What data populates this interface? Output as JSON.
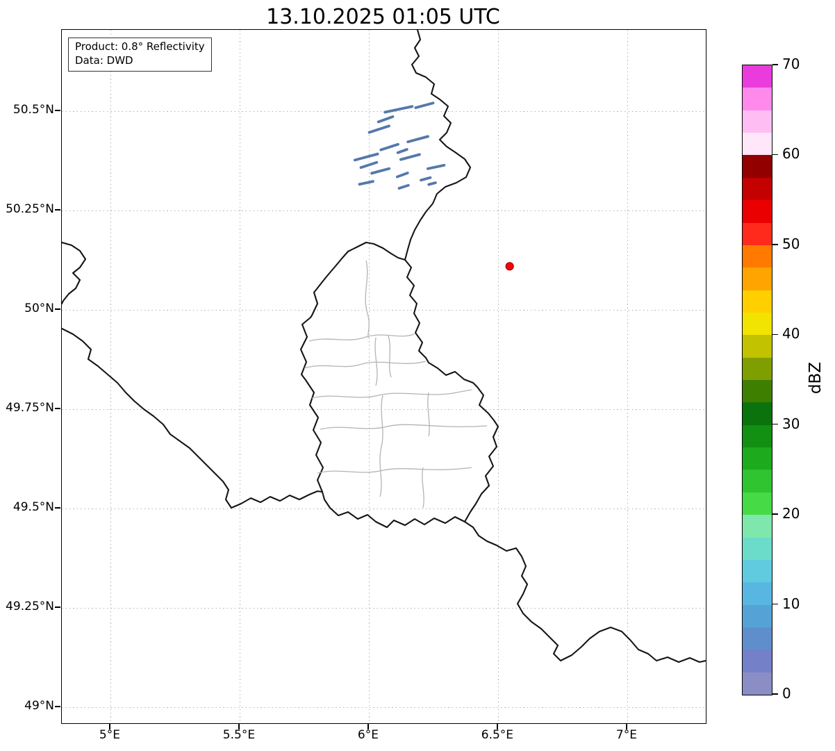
{
  "title": "13.10.2025 01:05 UTC",
  "info_box": {
    "line1": "Product: 0.8° Reflectivity",
    "line2": "Data: DWD"
  },
  "axes": {
    "x_ticks": [
      {
        "lon": 5.0,
        "label": "5°E"
      },
      {
        "lon": 5.5,
        "label": "5.5°E"
      },
      {
        "lon": 6.0,
        "label": "6°E"
      },
      {
        "lon": 6.5,
        "label": "6.5°E"
      },
      {
        "lon": 7.0,
        "label": "7°E"
      }
    ],
    "y_ticks": [
      {
        "lat": 49.0,
        "label": "49°N"
      },
      {
        "lat": 49.25,
        "label": "49.25°N"
      },
      {
        "lat": 49.5,
        "label": "49.5°N"
      },
      {
        "lat": 49.75,
        "label": "49.75°N"
      },
      {
        "lat": 50.0,
        "label": "50°N"
      },
      {
        "lat": 50.25,
        "label": "50.25°N"
      },
      {
        "lat": 50.5,
        "label": "50.5°N"
      }
    ]
  },
  "colorbar": {
    "label": "dBZ",
    "vmin": 0,
    "vmax": 70,
    "ticks": [
      0,
      10,
      20,
      30,
      40,
      50,
      60,
      70
    ],
    "colors": [
      "#8a8ec4",
      "#7480c8",
      "#5e8fcc",
      "#55a3d6",
      "#58b7e0",
      "#60cbde",
      "#6cdcca",
      "#7ee8ac",
      "#46da46",
      "#30c530",
      "#1daa1d",
      "#119011",
      "#0b730b",
      "#3f7f00",
      "#7f9e00",
      "#c2c200",
      "#f2e400",
      "#ffcf00",
      "#ffa400",
      "#ff7a00",
      "#ff2a1c",
      "#ea0000",
      "#c40000",
      "#930000",
      "#ffe6f9",
      "#ffbef3",
      "#ff8aeb",
      "#ea3cdc"
    ]
  },
  "map": {
    "extent": {
      "lon_min": 4.812,
      "lon_max": 7.304,
      "lat_min": 48.96,
      "lat_max": 50.705
    },
    "border_color": "#151515",
    "district_color": "#b3b3b3",
    "echo_color": "#5578ab",
    "radar_site": {
      "lon": 6.545,
      "lat": 50.11,
      "color": "#ff0000",
      "edge_color": "#990000"
    },
    "echoes": [
      {
        "lon": 6.115,
        "lat": 50.505,
        "len": 40,
        "angle": -12
      },
      {
        "lon": 6.215,
        "lat": 50.515,
        "len": 26,
        "angle": -15
      },
      {
        "lon": 6.065,
        "lat": 50.48,
        "len": 22,
        "angle": -20
      },
      {
        "lon": 6.04,
        "lat": 50.455,
        "len": 30,
        "angle": -18
      },
      {
        "lon": 6.19,
        "lat": 50.43,
        "len": 30,
        "angle": -15
      },
      {
        "lon": 6.08,
        "lat": 50.41,
        "len": 26,
        "angle": -18
      },
      {
        "lon": 6.13,
        "lat": 50.4,
        "len": 14,
        "angle": -20
      },
      {
        "lon": 5.99,
        "lat": 50.385,
        "len": 34,
        "angle": -15
      },
      {
        "lon": 6.16,
        "lat": 50.385,
        "len": 28,
        "angle": -15
      },
      {
        "lon": 6.0,
        "lat": 50.365,
        "len": 24,
        "angle": -18
      },
      {
        "lon": 6.26,
        "lat": 50.36,
        "len": 24,
        "angle": -12
      },
      {
        "lon": 6.045,
        "lat": 50.35,
        "len": 26,
        "angle": -15
      },
      {
        "lon": 6.13,
        "lat": 50.34,
        "len": 16,
        "angle": -20
      },
      {
        "lon": 6.22,
        "lat": 50.33,
        "len": 14,
        "angle": -15
      },
      {
        "lon": 5.99,
        "lat": 50.32,
        "len": 20,
        "angle": -12
      },
      {
        "lon": 6.135,
        "lat": 50.31,
        "len": 14,
        "angle": -18
      },
      {
        "lon": 6.245,
        "lat": 50.318,
        "len": 10,
        "angle": -15
      }
    ]
  }
}
